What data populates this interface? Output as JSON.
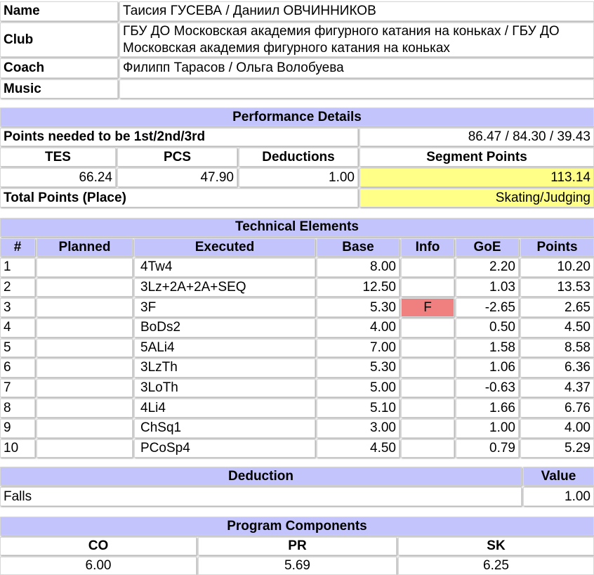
{
  "info": {
    "name_label": "Name",
    "name": "Таисия ГУСЕВА / Даниил ОВЧИННИКОВ",
    "club_label": "Club",
    "club": "ГБУ ДО Московская академия фигурного катания на коньках / ГБУ ДО Московская академия фигурного катания на коньках",
    "coach_label": "Coach",
    "coach": "Филипп Тарасов / Ольга Волобуева",
    "music_label": "Music",
    "music": ""
  },
  "performance": {
    "title": "Performance Details",
    "points_needed_label": "Points needed to be 1st/2nd/3rd",
    "points_needed": "86.47 / 84.30 / 39.43",
    "tes_label": "TES",
    "pcs_label": "PCS",
    "deductions_label": "Deductions",
    "segment_label": "Segment Points",
    "tes": "66.24",
    "pcs": "47.90",
    "deductions": "1.00",
    "segment": "113.14",
    "total_label": "Total Points (Place)",
    "total": "Skating/Judging",
    "highlight_color": "#ffff88"
  },
  "technical": {
    "title": "Technical Elements",
    "headers": [
      "#",
      "Planned",
      "Executed",
      "Base",
      "Info",
      "GoE",
      "Points"
    ],
    "rows": [
      [
        "1",
        "",
        "4Tw4",
        "8.00",
        "",
        "2.20",
        "10.20"
      ],
      [
        "2",
        "",
        "3Lz+2A+2A+SEQ",
        "12.50",
        "",
        "1.03",
        "13.53"
      ],
      [
        "3",
        "",
        "3F",
        "5.30",
        "F",
        "-2.65",
        "2.65"
      ],
      [
        "4",
        "",
        "BoDs2",
        "4.00",
        "",
        "0.50",
        "4.50"
      ],
      [
        "5",
        "",
        "5ALi4",
        "7.00",
        "",
        "1.58",
        "8.58"
      ],
      [
        "6",
        "",
        "3LzTh",
        "5.30",
        "",
        "1.06",
        "6.36"
      ],
      [
        "7",
        "",
        "3LoTh",
        "5.00",
        "",
        "-0.63",
        "4.37"
      ],
      [
        "8",
        "",
        "4Li4",
        "5.10",
        "",
        "1.66",
        "6.76"
      ],
      [
        "9",
        "",
        "ChSq1",
        "3.00",
        "",
        "1.00",
        "4.00"
      ],
      [
        "10",
        "",
        "PCoSp4",
        "4.50",
        "",
        "0.79",
        "5.29"
      ]
    ],
    "info_flag_color": "#f08080"
  },
  "deduction": {
    "header": "Deduction",
    "value_header": "Value",
    "rows": [
      [
        "Falls",
        "1.00"
      ]
    ]
  },
  "components": {
    "title": "Program Components",
    "headers": [
      "CO",
      "PR",
      "SK"
    ],
    "values": [
      "6.00",
      "5.69",
      "6.25"
    ]
  },
  "header_color": "#c4c4fc"
}
